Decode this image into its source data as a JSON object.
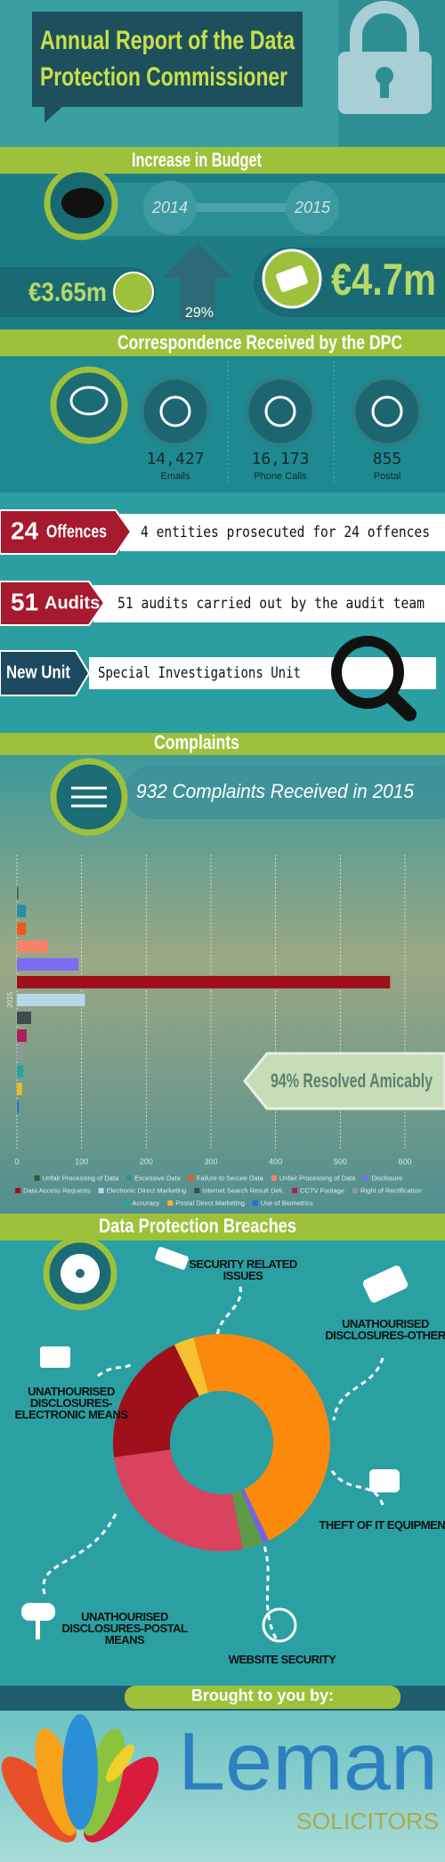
{
  "header": {
    "title": [
      "Annual Report of the Data",
      "Protection Commissioner"
    ]
  },
  "budget": {
    "title": "Increase in Budget",
    "years": [
      "2014",
      "2015"
    ],
    "amounts": [
      "€3.65m",
      "€4.7m"
    ],
    "increase": "29%"
  },
  "correspondence": {
    "title": "Correspondence Received by the DPC",
    "items": [
      {
        "value": "14,427",
        "label": "Emails"
      },
      {
        "value": "16,173",
        "label": "Phone Calls"
      },
      {
        "value": "855",
        "label": "Postal"
      }
    ]
  },
  "offences": {
    "number": "24",
    "label": "Offences",
    "text": "4 entities prosecuted for 24 offences"
  },
  "audits": {
    "number": "51",
    "label": "Audits",
    "text": "51 audits carried out by the audit team"
  },
  "new_unit": {
    "label": "New Unit",
    "text": "Special Investigations Unit"
  },
  "complaints": {
    "title": "Complaints",
    "headline": "932 Complaints Received in 2015",
    "resolved": "94% Resolved Amicably"
  },
  "breaches": {
    "title": "Data Protection Breaches"
  },
  "footer": {
    "intro": "Brought to you by:",
    "brand": "Leman",
    "tagline": "SOLICITORS"
  },
  "chart_data": [
    {
      "type": "bar",
      "orientation": "horizontal",
      "categories": [
        "2015"
      ],
      "series": [
        {
          "name": "Unfair Processing of Data",
          "color": "#2f5d2a",
          "values": [
            2
          ]
        },
        {
          "name": "Excessive Data",
          "color": "#2a8fa0",
          "values": [
            14
          ]
        },
        {
          "name": "Failure to Secure Data",
          "color": "#f05a1a",
          "values": [
            14
          ]
        },
        {
          "name": "Unfair Processing of Data",
          "color": "#f4836a",
          "values": [
            48
          ]
        },
        {
          "name": "Disclosure",
          "color": "#7b6cf0",
          "values": [
            95
          ]
        },
        {
          "name": "Data Access Requests",
          "color": "#a0101a",
          "values": [
            577
          ]
        },
        {
          "name": "Electronic Direct Marketing",
          "color": "#b6d8e6",
          "values": [
            105
          ]
        },
        {
          "name": "Internet Search Result Deli.",
          "color": "#3f4a4c",
          "values": [
            22
          ]
        },
        {
          "name": "CCTV Footage",
          "color": "#b01c5c",
          "values": [
            15
          ]
        },
        {
          "name": "Right of Rectification",
          "color": "#8a9a9a",
          "values": [
            10
          ]
        },
        {
          "name": "Accuracy",
          "color": "#2aa3a0",
          "values": [
            10
          ]
        },
        {
          "name": "Postal Direct Marketing",
          "color": "#f0b82a",
          "values": [
            8
          ]
        },
        {
          "name": "Use of Biometrics",
          "color": "#2a6ad0",
          "values": [
            3
          ]
        }
      ],
      "xlim": [
        0,
        650
      ],
      "xticks": [
        0,
        100,
        200,
        300,
        400,
        500,
        600
      ],
      "grid": true
    },
    {
      "type": "pie",
      "donut": true,
      "categories": [
        "UNATHOURISED DISCLOSURES-OTHER",
        "THEFT OF IT EQUIPMENT",
        "WEBSITE SECURITY",
        "UNATHOURISED DISCLOSURES-POSTAL MEANS",
        "UNATHOURISED DISCLOSURES-ELECTRONIC MEANS",
        "SECURITY RELATED ISSUES"
      ],
      "values": [
        47,
        1,
        3,
        26,
        20,
        3
      ],
      "colors": [
        "#fb8a0c",
        "#7763e0",
        "#5c9a46",
        "#d9435e",
        "#a0101a",
        "#f6c231"
      ]
    }
  ]
}
